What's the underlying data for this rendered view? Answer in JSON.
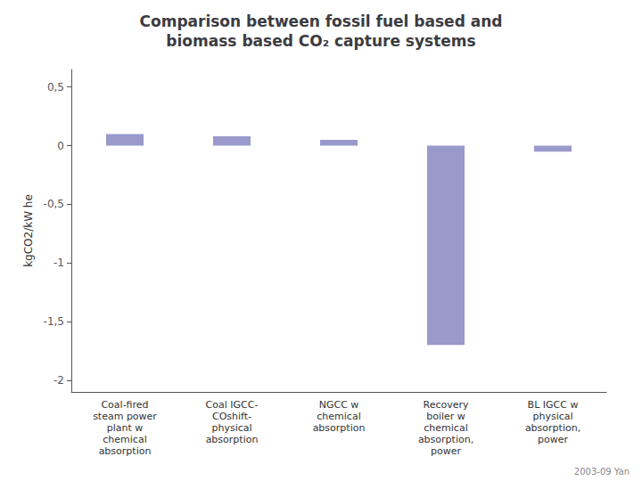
{
  "chart_data": {
    "type": "bar",
    "title": "Comparison between fossil fuel based and\nbiomass based CO₂ capture systems",
    "ylabel": "kgCO2/kW he",
    "categories": [
      "Coal-fired\nsteam power\nplant w\nchemical\nabsorption",
      "Coal IGCC-\nCOshift-\nphysical\nabsorption",
      "NGCC w\nchemical\nabsorption",
      "Recovery\nboiler w\nchemical\nabsorption,\npower",
      "BL IGCC w\nphysical\nabsorption,\npower"
    ],
    "values": [
      0.1,
      0.08,
      0.05,
      -1.7,
      -0.05
    ],
    "color": "#9999cc",
    "ylim": [
      -2.1,
      0.65
    ],
    "yticks": [
      {
        "value": 0.5,
        "label": "0,5"
      },
      0,
      {
        "value": -0.5,
        "label": "-0,5"
      },
      -1,
      {
        "value": -1.5,
        "label": "-1,5"
      },
      -2
    ],
    "grid": false,
    "annotations": [
      "2003-09 Yan"
    ]
  }
}
